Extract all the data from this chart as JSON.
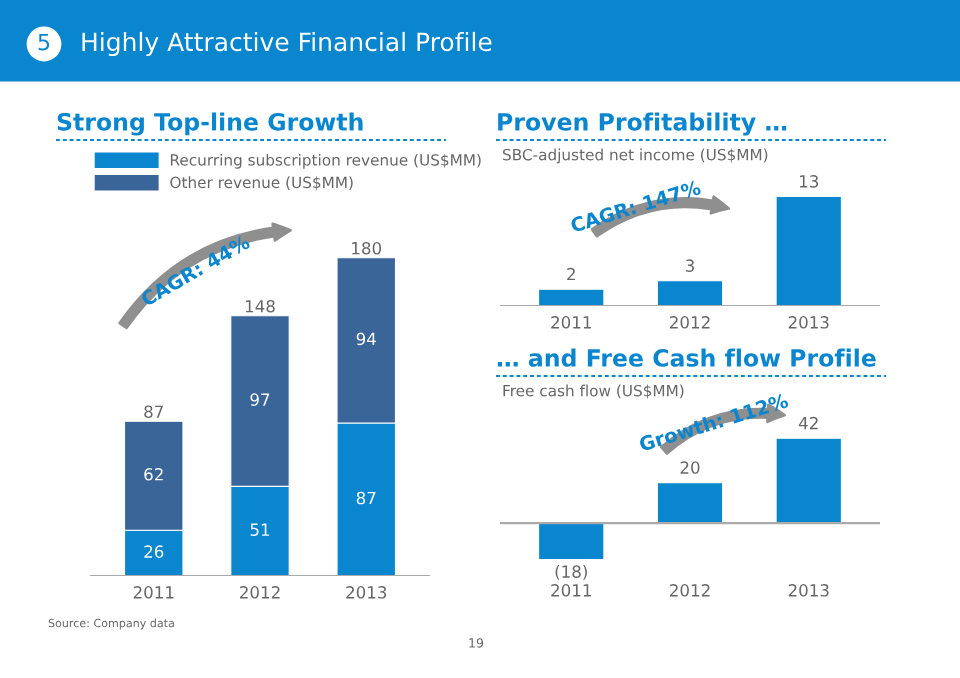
{
  "chart_data": [
    {
      "type": "other",
      "title": "Highly Attractive Financial Profile",
      "annotations": [
        "5",
        "Source: Company data",
        "19"
      ]
    },
    {
      "type": "bar",
      "title": "Strong Top-line Growth",
      "categories": [
        "2011",
        "2012",
        "2013"
      ],
      "stacked": true,
      "series": [
        {
          "name": "Recurring subscription revenue (US$MM)",
          "color": "#0a86cf",
          "values": [
            26,
            51,
            87
          ]
        },
        {
          "name": "Other revenue (US$MM)",
          "color": "#3a6598",
          "values": [
            62,
            97,
            94
          ]
        }
      ],
      "totals": [
        "87",
        "148",
        "180"
      ],
      "data_labels": true,
      "legend": "top",
      "annotations": [
        "CAGR: 44%"
      ]
    },
    {
      "type": "bar",
      "title": "Proven Profitability …",
      "subtitle": "SBC-adjusted net income (US$MM)",
      "categories": [
        "2011",
        "2012",
        "2013"
      ],
      "values": [
        2,
        3,
        13
      ],
      "color": "#0a86cf",
      "data_labels": true,
      "annotations": [
        "CAGR: 147%"
      ]
    },
    {
      "type": "bar",
      "title": "… and Free Cash flow Profile",
      "subtitle": "Free cash flow (US$MM)",
      "categories": [
        "2011",
        "2012",
        "2013"
      ],
      "values": [
        -18,
        20,
        42
      ],
      "value_labels": [
        "(18)",
        "20",
        "42"
      ],
      "color": "#0a86cf",
      "annotations": [
        "Growth: 112%"
      ]
    }
  ]
}
